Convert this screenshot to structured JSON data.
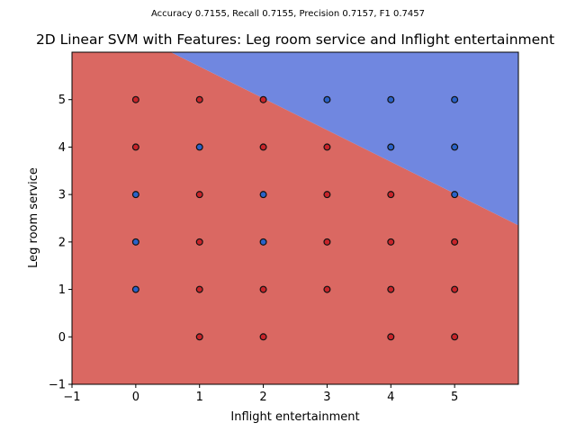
{
  "chart_data": {
    "type": "scatter",
    "suptitle": "Accuracy 0.7155, Recall 0.7155, Precision 0.7157, F1 0.7457",
    "title": "2D Linear SVM with Features: Leg room service and Inflight entertainment",
    "xlabel": "Inflight entertainment",
    "ylabel": "Leg room service",
    "xlim": [
      -1,
      6
    ],
    "ylim": [
      -1,
      6
    ],
    "xticks": [
      -1,
      0,
      1,
      2,
      3,
      4,
      5
    ],
    "yticks": [
      -1,
      0,
      1,
      2,
      3,
      4,
      5
    ],
    "grid": false,
    "decision_boundary": {
      "line": [
        [
          0.55,
          6.0
        ],
        [
          6.0,
          2.35
        ]
      ],
      "above_region_color": "#7087e0",
      "below_region_color": "#da6862"
    },
    "class_colors": {
      "red": "#c8242a",
      "blue": "#2a62c8"
    },
    "points": [
      {
        "x": 0,
        "y": 5,
        "class": "red"
      },
      {
        "x": 0,
        "y": 4,
        "class": "red"
      },
      {
        "x": 0,
        "y": 3,
        "class": "blue"
      },
      {
        "x": 0,
        "y": 2,
        "class": "blue"
      },
      {
        "x": 0,
        "y": 1,
        "class": "blue"
      },
      {
        "x": 1,
        "y": 5,
        "class": "red"
      },
      {
        "x": 1,
        "y": 4,
        "class": "blue"
      },
      {
        "x": 1,
        "y": 3,
        "class": "red"
      },
      {
        "x": 1,
        "y": 2,
        "class": "red"
      },
      {
        "x": 1,
        "y": 1,
        "class": "red"
      },
      {
        "x": 1,
        "y": 0,
        "class": "red"
      },
      {
        "x": 2,
        "y": 5,
        "class": "red"
      },
      {
        "x": 2,
        "y": 4,
        "class": "red"
      },
      {
        "x": 2,
        "y": 3,
        "class": "blue"
      },
      {
        "x": 2,
        "y": 2,
        "class": "blue"
      },
      {
        "x": 2,
        "y": 1,
        "class": "red"
      },
      {
        "x": 2,
        "y": 0,
        "class": "red"
      },
      {
        "x": 3,
        "y": 5,
        "class": "blue"
      },
      {
        "x": 3,
        "y": 4,
        "class": "red"
      },
      {
        "x": 3,
        "y": 3,
        "class": "red"
      },
      {
        "x": 3,
        "y": 2,
        "class": "red"
      },
      {
        "x": 3,
        "y": 1,
        "class": "red"
      },
      {
        "x": 4,
        "y": 5,
        "class": "blue"
      },
      {
        "x": 4,
        "y": 4,
        "class": "blue"
      },
      {
        "x": 4,
        "y": 3,
        "class": "red"
      },
      {
        "x": 4,
        "y": 2,
        "class": "red"
      },
      {
        "x": 4,
        "y": 1,
        "class": "red"
      },
      {
        "x": 4,
        "y": 0,
        "class": "red"
      },
      {
        "x": 5,
        "y": 5,
        "class": "blue"
      },
      {
        "x": 5,
        "y": 4,
        "class": "blue"
      },
      {
        "x": 5,
        "y": 3,
        "class": "blue"
      },
      {
        "x": 5,
        "y": 2,
        "class": "red"
      },
      {
        "x": 5,
        "y": 1,
        "class": "red"
      },
      {
        "x": 5,
        "y": 0,
        "class": "red"
      }
    ]
  }
}
